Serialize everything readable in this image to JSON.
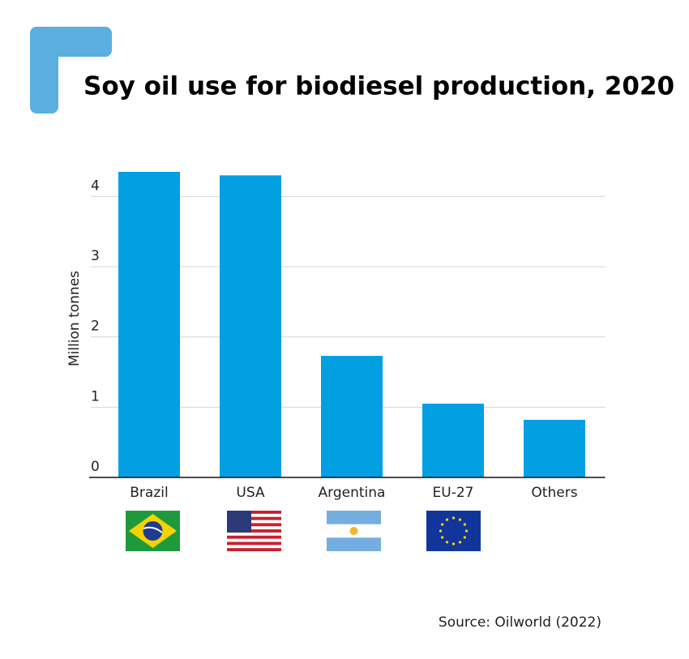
{
  "chart_data": {
    "type": "bar",
    "title": "Soy oil use for biodiesel production, 2020",
    "y_label": "Million tonnes",
    "source": "Source: Oilworld (2022)",
    "categories": [
      "Brazil",
      "USA",
      "Argentina",
      "EU-27",
      "Others"
    ],
    "values": [
      4.35,
      4.3,
      1.73,
      1.05,
      0.82
    ],
    "color": "#039fe3",
    "ylim": [
      0,
      4.5
    ],
    "yticks": [
      0,
      1,
      2,
      3,
      4
    ],
    "grid": true
  }
}
